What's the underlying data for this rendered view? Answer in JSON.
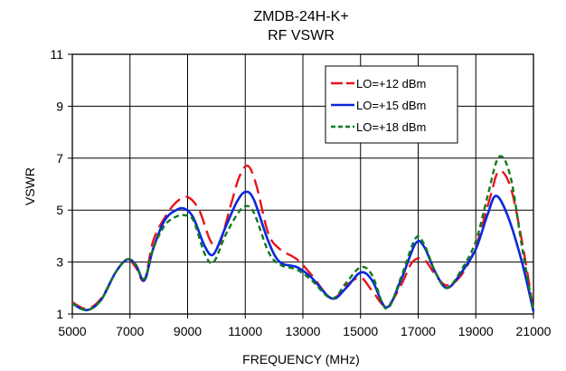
{
  "chart_data": {
    "type": "line",
    "title": [
      "ZMDB-24H-K+",
      "RF VSWR"
    ],
    "xlabel": "FREQUENCY (MHz)",
    "ylabel": "VSWR",
    "xlim": [
      5000,
      21000
    ],
    "ylim": [
      1,
      11
    ],
    "xticks": [
      5000,
      7000,
      9000,
      11000,
      13000,
      15000,
      17000,
      19000,
      21000
    ],
    "yticks": [
      1,
      3,
      5,
      7,
      9,
      11
    ],
    "grid": true,
    "legend_position": "top-right",
    "series": [
      {
        "name": "LO=+12 dBm",
        "color": "#e8141c",
        "dash": "long-dash",
        "points": [
          [
            5000,
            1.45
          ],
          [
            5500,
            1.2
          ],
          [
            6000,
            1.6
          ],
          [
            6500,
            2.6
          ],
          [
            6900,
            3.1
          ],
          [
            7200,
            2.8
          ],
          [
            7500,
            2.3
          ],
          [
            7800,
            3.8
          ],
          [
            8200,
            4.7
          ],
          [
            8600,
            5.3
          ],
          [
            9000,
            5.5
          ],
          [
            9400,
            5.0
          ],
          [
            9800,
            3.8
          ],
          [
            10100,
            3.7
          ],
          [
            10500,
            5.2
          ],
          [
            10800,
            6.3
          ],
          [
            11100,
            6.7
          ],
          [
            11400,
            5.9
          ],
          [
            11800,
            4.1
          ],
          [
            12200,
            3.5
          ],
          [
            12800,
            3.1
          ],
          [
            13300,
            2.5
          ],
          [
            14000,
            1.6
          ],
          [
            14500,
            2.1
          ],
          [
            15000,
            2.4
          ],
          [
            15400,
            1.9
          ],
          [
            15900,
            1.3
          ],
          [
            16400,
            2.1
          ],
          [
            16800,
            3.0
          ],
          [
            17200,
            3.1
          ],
          [
            17600,
            2.5
          ],
          [
            18000,
            2.1
          ],
          [
            18500,
            2.5
          ],
          [
            19000,
            3.6
          ],
          [
            19500,
            5.5
          ],
          [
            19800,
            6.5
          ],
          [
            20200,
            5.9
          ],
          [
            20600,
            3.8
          ],
          [
            21000,
            1.15
          ]
        ]
      },
      {
        "name": "LO=+15 dBm",
        "color": "#0a28dc",
        "dash": "solid",
        "points": [
          [
            5000,
            1.4
          ],
          [
            5500,
            1.15
          ],
          [
            6000,
            1.55
          ],
          [
            6500,
            2.6
          ],
          [
            6900,
            3.1
          ],
          [
            7200,
            2.9
          ],
          [
            7500,
            2.3
          ],
          [
            7800,
            3.5
          ],
          [
            8200,
            4.6
          ],
          [
            8600,
            5.0
          ],
          [
            8900,
            5.05
          ],
          [
            9200,
            4.7
          ],
          [
            9600,
            3.6
          ],
          [
            9900,
            3.3
          ],
          [
            10300,
            4.3
          ],
          [
            10700,
            5.3
          ],
          [
            11000,
            5.7
          ],
          [
            11300,
            5.4
          ],
          [
            11800,
            3.8
          ],
          [
            12200,
            3.0
          ],
          [
            12800,
            2.8
          ],
          [
            13300,
            2.4
          ],
          [
            14000,
            1.6
          ],
          [
            14500,
            2.0
          ],
          [
            15000,
            2.6
          ],
          [
            15400,
            2.3
          ],
          [
            15900,
            1.25
          ],
          [
            16400,
            2.3
          ],
          [
            16900,
            3.7
          ],
          [
            17200,
            3.6
          ],
          [
            17600,
            2.6
          ],
          [
            18000,
            2.0
          ],
          [
            18500,
            2.6
          ],
          [
            19000,
            3.5
          ],
          [
            19400,
            4.8
          ],
          [
            19700,
            5.55
          ],
          [
            20100,
            4.8
          ],
          [
            20600,
            3.0
          ],
          [
            21000,
            1.1
          ]
        ]
      },
      {
        "name": "LO=+18 dBm",
        "color": "#0f7a1e",
        "dash": "short-dash",
        "points": [
          [
            5000,
            1.4
          ],
          [
            5500,
            1.15
          ],
          [
            6000,
            1.55
          ],
          [
            6500,
            2.6
          ],
          [
            6900,
            3.1
          ],
          [
            7200,
            2.9
          ],
          [
            7500,
            2.35
          ],
          [
            7800,
            3.5
          ],
          [
            8200,
            4.4
          ],
          [
            8600,
            4.75
          ],
          [
            8900,
            4.8
          ],
          [
            9200,
            4.6
          ],
          [
            9600,
            3.3
          ],
          [
            9900,
            3.0
          ],
          [
            10300,
            4.0
          ],
          [
            10700,
            4.8
          ],
          [
            11000,
            5.15
          ],
          [
            11300,
            4.9
          ],
          [
            11800,
            3.4
          ],
          [
            12200,
            2.9
          ],
          [
            12800,
            2.7
          ],
          [
            13300,
            2.3
          ],
          [
            14000,
            1.6
          ],
          [
            14500,
            2.2
          ],
          [
            15000,
            2.8
          ],
          [
            15400,
            2.5
          ],
          [
            15900,
            1.2
          ],
          [
            16400,
            2.4
          ],
          [
            16900,
            3.9
          ],
          [
            17200,
            3.7
          ],
          [
            17600,
            2.6
          ],
          [
            18000,
            2.0
          ],
          [
            18500,
            2.7
          ],
          [
            19000,
            3.8
          ],
          [
            19400,
            5.5
          ],
          [
            19800,
            7.05
          ],
          [
            20200,
            6.3
          ],
          [
            20600,
            3.6
          ],
          [
            21000,
            1.1
          ]
        ]
      }
    ]
  }
}
